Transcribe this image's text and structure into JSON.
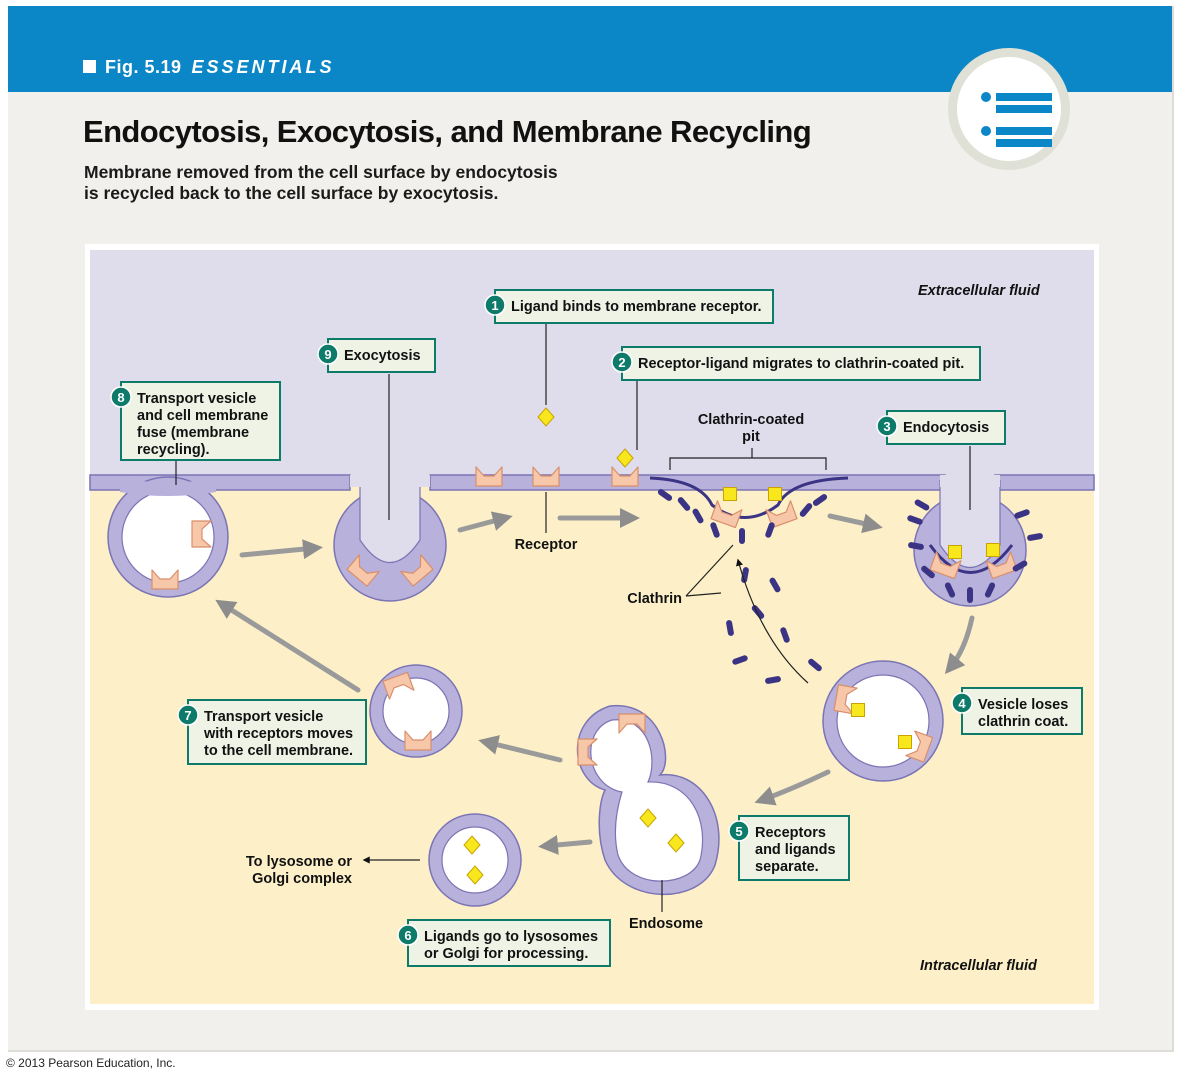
{
  "header": {
    "fig_number": "Fig. 5.19",
    "fig_tag": "ESSENTIALS",
    "title": "Endocytosis, Exocytosis, and Membrane Recycling",
    "subtitle_line1": "Membrane removed from the cell surface by endocytosis",
    "subtitle_line2": "is recycled back to the cell surface by exocytosis."
  },
  "menu_icon": "list-menu-icon",
  "colors": {
    "banner": "#0b86c6",
    "extracellular": "#dfdcec",
    "intracellular": "#fdf0c9",
    "membrane_fill": "#b7b1db",
    "membrane_edge": "#7b74b4",
    "receptor": "#f7c7a9",
    "ligand": "#f8e71c",
    "clathrin": "#3b3485",
    "step_badge": "#0d7a6a",
    "callout_fill": "#eef3e6"
  },
  "diagram": {
    "regions": {
      "extracellular": "Extracellular fluid",
      "intracellular": "Intracellular fluid"
    },
    "labels": {
      "receptor": "Receptor",
      "clathrin": "Clathrin",
      "clathrin_pit_1": "Clathrin-coated",
      "clathrin_pit_2": "pit",
      "endosome": "Endosome",
      "to_lysosome_1": "To lysosome or",
      "to_lysosome_2": "Golgi complex"
    },
    "steps": [
      {
        "number": "1",
        "lines": [
          "Ligand binds to membrane receptor."
        ]
      },
      {
        "number": "2",
        "lines": [
          "Receptor-ligand migrates to clathrin-coated pit."
        ]
      },
      {
        "number": "3",
        "lines": [
          "Endocytosis"
        ]
      },
      {
        "number": "4",
        "lines": [
          "Vesicle loses",
          "clathrin coat."
        ]
      },
      {
        "number": "5",
        "lines": [
          "Receptors",
          "and ligands",
          "separate."
        ]
      },
      {
        "number": "6",
        "lines": [
          "Ligands go to lysosomes",
          "or Golgi for processing."
        ]
      },
      {
        "number": "7",
        "lines": [
          "Transport vesicle",
          "with receptors moves",
          "to the cell membrane."
        ]
      },
      {
        "number": "8",
        "lines": [
          "Transport vesicle",
          "and cell membrane",
          "fuse (membrane",
          "recycling)."
        ]
      },
      {
        "number": "9",
        "lines": [
          "Exocytosis"
        ]
      }
    ]
  },
  "footer": {
    "copyright": "© 2013 Pearson Education, Inc."
  }
}
